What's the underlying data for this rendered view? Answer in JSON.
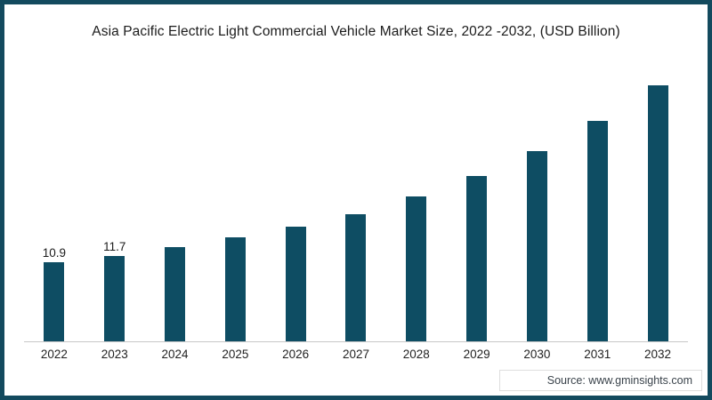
{
  "title": "Asia Pacific Electric Light Commercial Vehicle Market Size, 2022 -2032, (USD Billion)",
  "source": "Source: www.gminsights.com",
  "colors": {
    "bar": "#0e4d63",
    "frame": "#134a5e",
    "axis_line": "#c8c8c8",
    "title_text": "#1b1b1b",
    "tick_text": "#222222",
    "source_text": "#3a434b"
  },
  "chart_data": {
    "type": "bar",
    "title": "Asia Pacific Electric Light Commercial Vehicle Market Size, 2022 -2032, (USD Billion)",
    "categories": [
      "2022",
      "2023",
      "2024",
      "2025",
      "2026",
      "2027",
      "2028",
      "2029",
      "2030",
      "2031",
      "2032"
    ],
    "values": [
      10.9,
      11.7,
      13.0,
      14.3,
      15.7,
      17.5,
      19.9,
      22.7,
      26.1,
      30.3,
      35.2
    ],
    "bar_labels": [
      "10.9",
      "11.7",
      "",
      "",
      "",
      "",
      "",
      "",
      "",
      "",
      ""
    ],
    "xlabel": "",
    "ylabel": "",
    "ylim": [
      0,
      40
    ],
    "grid": false,
    "legend": false,
    "annotations": [
      "Source: www.gminsights.com"
    ]
  }
}
